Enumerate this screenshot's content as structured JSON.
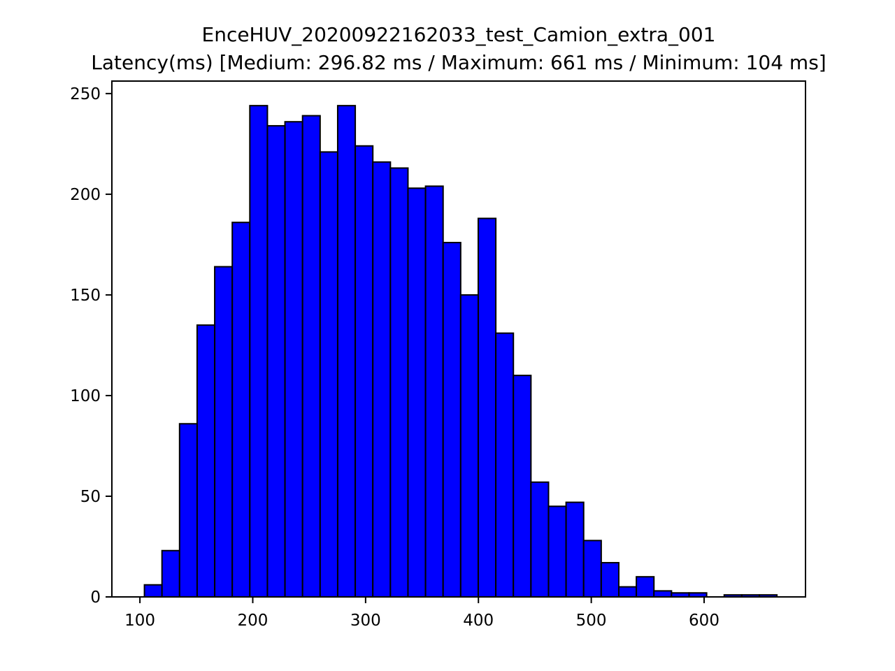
{
  "chart_data": {
    "type": "bar",
    "title": "EnceHUV_20200922162033_test_Camion_extra_001",
    "subtitle": "Latency(ms) [Medium: 296.82 ms / Maximum: 661 ms / Minimum: 104 ms]",
    "xlabel": "",
    "ylabel": "",
    "xlim": [
      75.15,
      689.85
    ],
    "ylim": [
      0,
      256.2
    ],
    "xticks": [
      100,
      200,
      300,
      400,
      500,
      600
    ],
    "yticks": [
      0,
      50,
      100,
      150,
      200,
      250
    ],
    "bin_start": 104,
    "bin_width": 15.57,
    "counts": [
      6,
      23,
      86,
      135,
      164,
      186,
      244,
      234,
      236,
      239,
      221,
      244,
      224,
      216,
      213,
      203,
      204,
      176,
      150,
      188,
      131,
      110,
      57,
      45,
      47,
      28,
      17,
      5,
      10,
      3,
      2,
      2,
      0,
      1,
      1,
      1
    ],
    "grid": false,
    "legend": "none",
    "bar_color": "#0000ff",
    "edge_color": "#000000"
  }
}
